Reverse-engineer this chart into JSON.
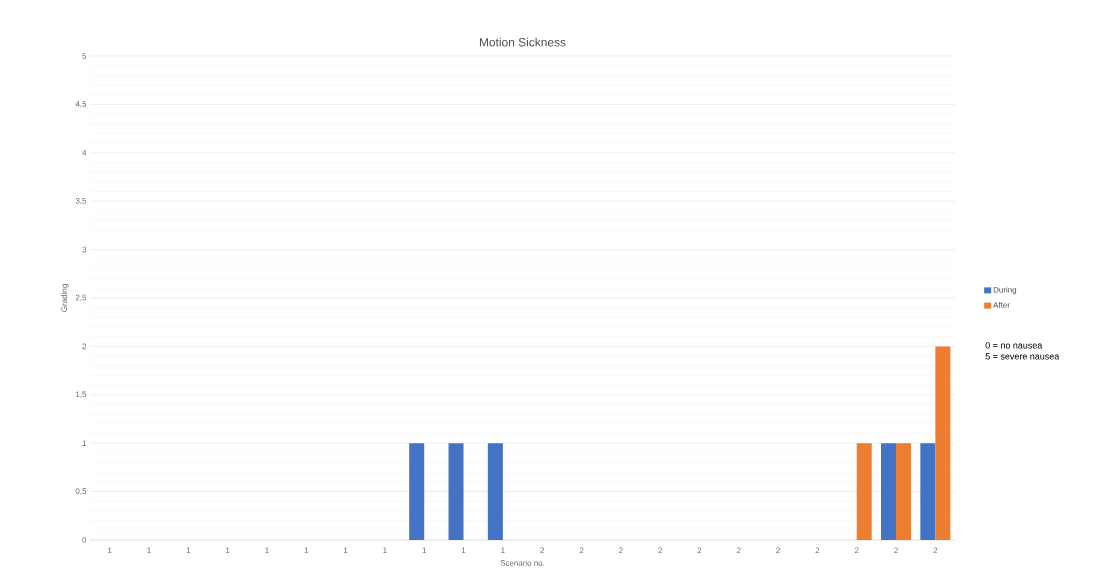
{
  "chart_data": {
    "type": "bar",
    "title": "Motion Sickness",
    "xlabel": "Scenario no.",
    "ylabel": "Grading",
    "categories": [
      "1",
      "1",
      "1",
      "1",
      "1",
      "1",
      "1",
      "1",
      "1",
      "1",
      "1",
      "2",
      "2",
      "2",
      "2",
      "2",
      "2",
      "2",
      "2",
      "2",
      "2",
      "2"
    ],
    "series": [
      {
        "name": "During",
        "color": "#4472c4",
        "values": [
          0,
          0,
          0,
          0,
          0,
          0,
          0,
          0,
          1,
          1,
          1,
          0,
          0,
          0,
          0,
          0,
          0,
          0,
          0,
          0,
          1,
          1
        ]
      },
      {
        "name": "After",
        "color": "#ed7d31",
        "values": [
          0,
          0,
          0,
          0,
          0,
          0,
          0,
          0,
          0,
          0,
          0,
          0,
          0,
          0,
          0,
          0,
          0,
          0,
          0,
          1,
          1,
          2
        ]
      }
    ],
    "ylim": [
      0,
      5
    ],
    "yticks": [
      0,
      {
        "value": 0.5,
        "label": "0,5"
      },
      1,
      {
        "value": 1.5,
        "label": "1,5"
      },
      2,
      {
        "value": 2.5,
        "label": "2,5"
      },
      3,
      {
        "value": 3.5,
        "label": "3,5"
      },
      4,
      {
        "value": 4.5,
        "label": "4,5"
      },
      5
    ],
    "grid": "y",
    "legend": "right",
    "annotations": [
      "0 = no nausea",
      "5 = severe nausea"
    ]
  }
}
